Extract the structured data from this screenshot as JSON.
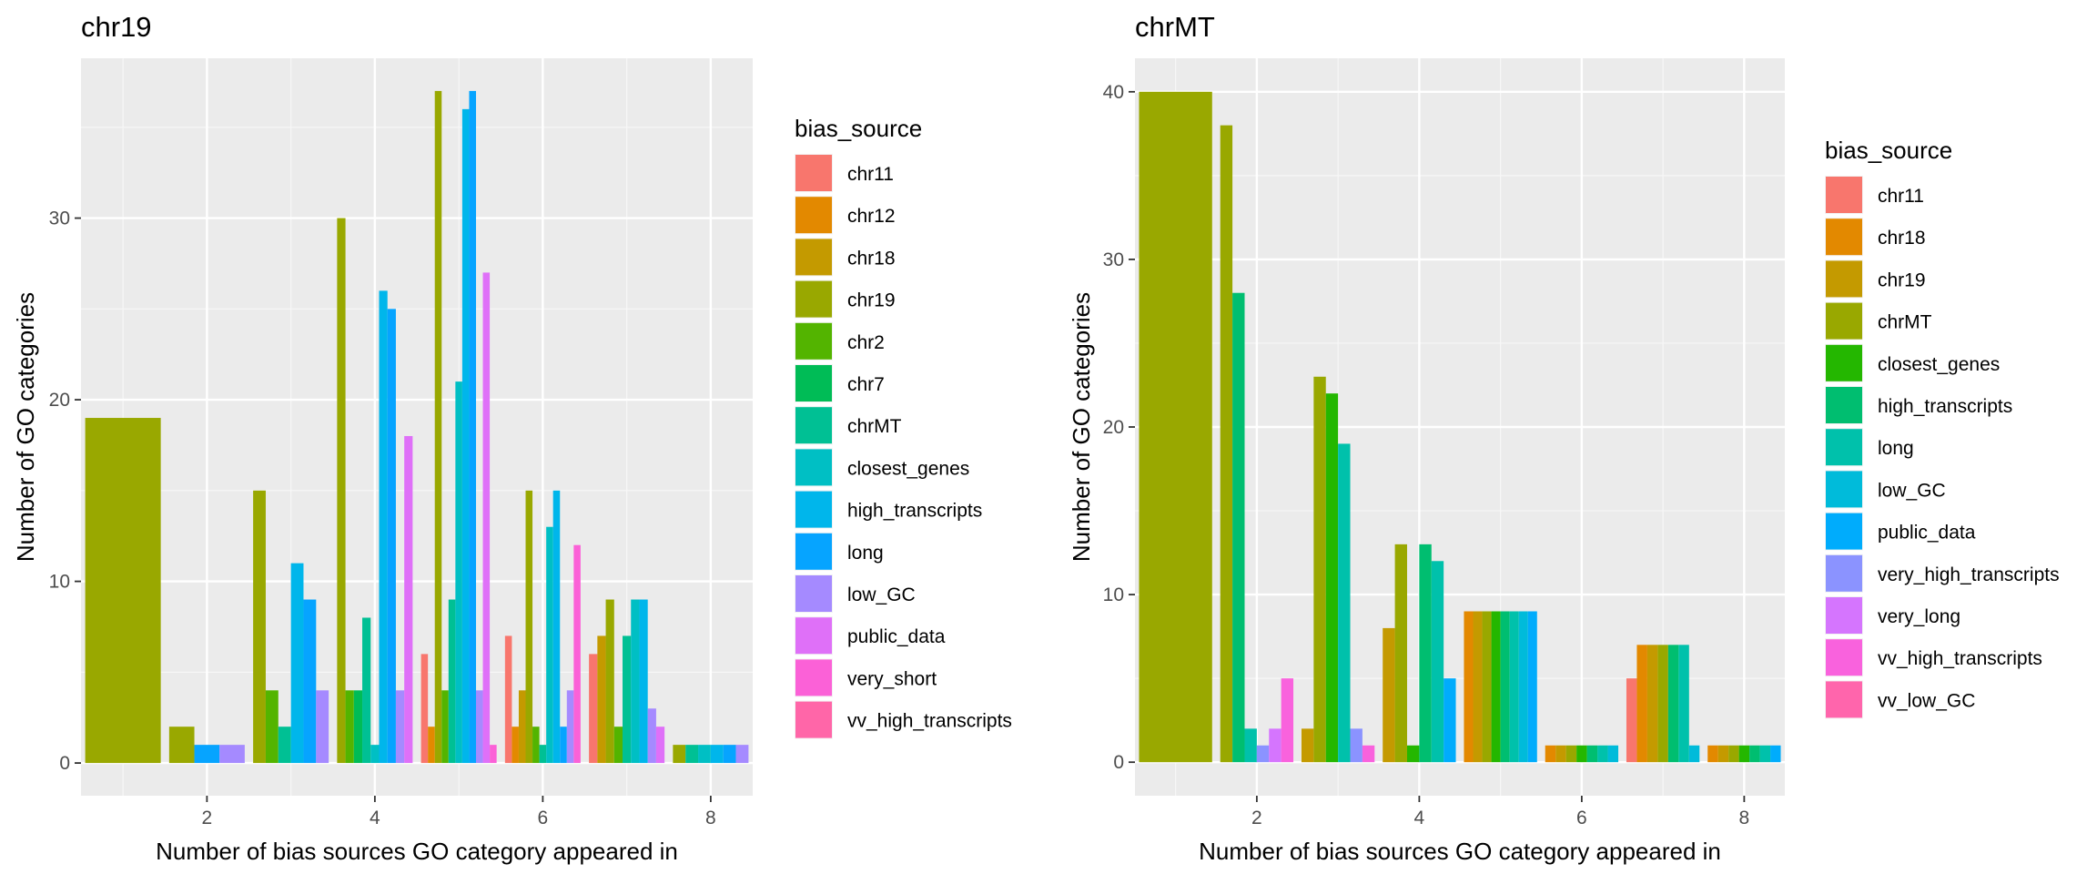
{
  "chart_data": [
    {
      "type": "bar",
      "title": "chr19",
      "xlabel": "Number of bias sources GO category appeared in",
      "ylabel": "Number of GO categories",
      "xlim": [
        0.5,
        8.5
      ],
      "ylim": [
        -1.8,
        38.8
      ],
      "xticks": [
        2,
        4,
        6,
        8
      ],
      "yticks": [
        0,
        10,
        20,
        30
      ],
      "grid": true,
      "legend_title": "bias_source",
      "legend_position": "right",
      "series": [
        {
          "name": "chr11",
          "color": "#F8766D"
        },
        {
          "name": "chr12",
          "color": "#E38900"
        },
        {
          "name": "chr18",
          "color": "#C49A00"
        },
        {
          "name": "chr19",
          "color": "#99A800"
        },
        {
          "name": "chr2",
          "color": "#53B400"
        },
        {
          "name": "chr7",
          "color": "#00BC56"
        },
        {
          "name": "chrMT",
          "color": "#00C094"
        },
        {
          "name": "closest_genes",
          "color": "#00BFC4"
        },
        {
          "name": "high_transcripts",
          "color": "#00B6EB"
        },
        {
          "name": "long",
          "color": "#06A4FF"
        },
        {
          "name": "low_GC",
          "color": "#A58AFF"
        },
        {
          "name": "public_data",
          "color": "#DF70F8"
        },
        {
          "name": "very_short",
          "color": "#FB61D7"
        },
        {
          "name": "vv_high_transcripts",
          "color": "#FF66A8"
        }
      ],
      "groups": [
        {
          "x": 1,
          "bars": [
            {
              "s": "chr19",
              "v": 19
            }
          ]
        },
        {
          "x": 2,
          "bars": [
            {
              "s": "chr19",
              "v": 2
            },
            {
              "s": "long",
              "v": 1
            },
            {
              "s": "low_GC",
              "v": 1
            }
          ]
        },
        {
          "x": 3,
          "bars": [
            {
              "s": "chr19",
              "v": 15
            },
            {
              "s": "chr2",
              "v": 4
            },
            {
              "s": "chrMT",
              "v": 2
            },
            {
              "s": "high_transcripts",
              "v": 11
            },
            {
              "s": "long",
              "v": 9
            },
            {
              "s": "low_GC",
              "v": 4
            }
          ]
        },
        {
          "x": 4,
          "bars": [
            {
              "s": "chr19",
              "v": 30
            },
            {
              "s": "chr2",
              "v": 4
            },
            {
              "s": "chr7",
              "v": 4
            },
            {
              "s": "chrMT",
              "v": 8
            },
            {
              "s": "closest_genes",
              "v": 1
            },
            {
              "s": "high_transcripts",
              "v": 26
            },
            {
              "s": "long",
              "v": 25
            },
            {
              "s": "low_GC",
              "v": 4
            },
            {
              "s": "public_data",
              "v": 18
            }
          ]
        },
        {
          "x": 5,
          "bars": [
            {
              "s": "chr11",
              "v": 6
            },
            {
              "s": "chr12",
              "v": 2
            },
            {
              "s": "chr19",
              "v": 37
            },
            {
              "s": "chr2",
              "v": 4
            },
            {
              "s": "chrMT",
              "v": 9
            },
            {
              "s": "closest_genes",
              "v": 21
            },
            {
              "s": "high_transcripts",
              "v": 36
            },
            {
              "s": "long",
              "v": 37
            },
            {
              "s": "low_GC",
              "v": 4
            },
            {
              "s": "public_data",
              "v": 27
            },
            {
              "s": "very_short",
              "v": 1
            }
          ]
        },
        {
          "x": 6,
          "bars": [
            {
              "s": "chr11",
              "v": 7
            },
            {
              "s": "chr12",
              "v": 2
            },
            {
              "s": "chr18",
              "v": 4
            },
            {
              "s": "chr19",
              "v": 15
            },
            {
              "s": "chr2",
              "v": 2
            },
            {
              "s": "chrMT",
              "v": 1
            },
            {
              "s": "closest_genes",
              "v": 13
            },
            {
              "s": "high_transcripts",
              "v": 15
            },
            {
              "s": "long",
              "v": 2
            },
            {
              "s": "low_GC",
              "v": 4
            },
            {
              "s": "very_short",
              "v": 12
            }
          ]
        },
        {
          "x": 7,
          "bars": [
            {
              "s": "chr11",
              "v": 6
            },
            {
              "s": "chr18",
              "v": 7
            },
            {
              "s": "chr19",
              "v": 9
            },
            {
              "s": "chr2",
              "v": 2
            },
            {
              "s": "chrMT",
              "v": 7
            },
            {
              "s": "closest_genes",
              "v": 9
            },
            {
              "s": "high_transcripts",
              "v": 9
            },
            {
              "s": "low_GC",
              "v": 3
            },
            {
              "s": "public_data",
              "v": 2
            }
          ]
        },
        {
          "x": 8,
          "bars": [
            {
              "s": "chr19",
              "v": 1
            },
            {
              "s": "chrMT",
              "v": 1
            },
            {
              "s": "closest_genes",
              "v": 1
            },
            {
              "s": "high_transcripts",
              "v": 1
            },
            {
              "s": "long",
              "v": 1
            },
            {
              "s": "low_GC",
              "v": 1
            }
          ]
        }
      ]
    },
    {
      "type": "bar",
      "title": "chrMT",
      "xlabel": "Number of bias sources GO category appeared in",
      "ylabel": "Number of GO categories",
      "xlim": [
        0.5,
        8.5
      ],
      "ylim": [
        -2.0,
        42.0
      ],
      "xticks": [
        2,
        4,
        6,
        8
      ],
      "yticks": [
        0,
        10,
        20,
        30,
        40
      ],
      "grid": true,
      "legend_title": "bias_source",
      "legend_position": "right",
      "series": [
        {
          "name": "chr11",
          "color": "#F8766D"
        },
        {
          "name": "chr18",
          "color": "#E38900"
        },
        {
          "name": "chr19",
          "color": "#C49A00"
        },
        {
          "name": "chrMT",
          "color": "#99A800"
        },
        {
          "name": "closest_genes",
          "color": "#24B700"
        },
        {
          "name": "high_transcripts",
          "color": "#00BE70"
        },
        {
          "name": "long",
          "color": "#00C1AB"
        },
        {
          "name": "low_GC",
          "color": "#00BBDA"
        },
        {
          "name": "public_data",
          "color": "#00ACFC"
        },
        {
          "name": "very_high_transcripts",
          "color": "#8B93FF"
        },
        {
          "name": "very_long",
          "color": "#D575FE"
        },
        {
          "name": "vv_high_transcripts",
          "color": "#F962DD"
        },
        {
          "name": "vv_low_GC",
          "color": "#FF65AC"
        }
      ],
      "groups": [
        {
          "x": 1,
          "bars": [
            {
              "s": "chrMT",
              "v": 40
            }
          ]
        },
        {
          "x": 2,
          "bars": [
            {
              "s": "chrMT",
              "v": 38
            },
            {
              "s": "high_transcripts",
              "v": 28
            },
            {
              "s": "long",
              "v": 2
            },
            {
              "s": "very_high_transcripts",
              "v": 1
            },
            {
              "s": "very_long",
              "v": 2
            },
            {
              "s": "vv_high_transcripts",
              "v": 5
            }
          ]
        },
        {
          "x": 3,
          "bars": [
            {
              "s": "chr19",
              "v": 2
            },
            {
              "s": "chrMT",
              "v": 23
            },
            {
              "s": "closest_genes",
              "v": 22
            },
            {
              "s": "long",
              "v": 19
            },
            {
              "s": "very_high_transcripts",
              "v": 2
            },
            {
              "s": "vv_high_transcripts",
              "v": 1
            }
          ]
        },
        {
          "x": 4,
          "bars": [
            {
              "s": "chr19",
              "v": 8
            },
            {
              "s": "chrMT",
              "v": 13
            },
            {
              "s": "closest_genes",
              "v": 1
            },
            {
              "s": "high_transcripts",
              "v": 13
            },
            {
              "s": "long",
              "v": 12
            },
            {
              "s": "public_data",
              "v": 5
            }
          ]
        },
        {
          "x": 5,
          "bars": [
            {
              "s": "chr18",
              "v": 9
            },
            {
              "s": "chr19",
              "v": 9
            },
            {
              "s": "chrMT",
              "v": 9
            },
            {
              "s": "closest_genes",
              "v": 9
            },
            {
              "s": "high_transcripts",
              "v": 9
            },
            {
              "s": "long",
              "v": 9
            },
            {
              "s": "low_GC",
              "v": 9
            },
            {
              "s": "public_data",
              "v": 9
            }
          ]
        },
        {
          "x": 6,
          "bars": [
            {
              "s": "chr18",
              "v": 1
            },
            {
              "s": "chr19",
              "v": 1
            },
            {
              "s": "chrMT",
              "v": 1
            },
            {
              "s": "closest_genes",
              "v": 1
            },
            {
              "s": "high_transcripts",
              "v": 1
            },
            {
              "s": "long",
              "v": 1
            },
            {
              "s": "low_GC",
              "v": 1
            }
          ]
        },
        {
          "x": 7,
          "bars": [
            {
              "s": "chr11",
              "v": 5
            },
            {
              "s": "chr18",
              "v": 7
            },
            {
              "s": "chr19",
              "v": 7
            },
            {
              "s": "chrMT",
              "v": 7
            },
            {
              "s": "high_transcripts",
              "v": 7
            },
            {
              "s": "long",
              "v": 7
            },
            {
              "s": "low_GC",
              "v": 1
            }
          ]
        },
        {
          "x": 8,
          "bars": [
            {
              "s": "chr18",
              "v": 1
            },
            {
              "s": "chr19",
              "v": 1
            },
            {
              "s": "chrMT",
              "v": 1
            },
            {
              "s": "closest_genes",
              "v": 1
            },
            {
              "s": "high_transcripts",
              "v": 1
            },
            {
              "s": "long",
              "v": 1
            },
            {
              "s": "public_data",
              "v": 1
            }
          ]
        }
      ]
    }
  ]
}
